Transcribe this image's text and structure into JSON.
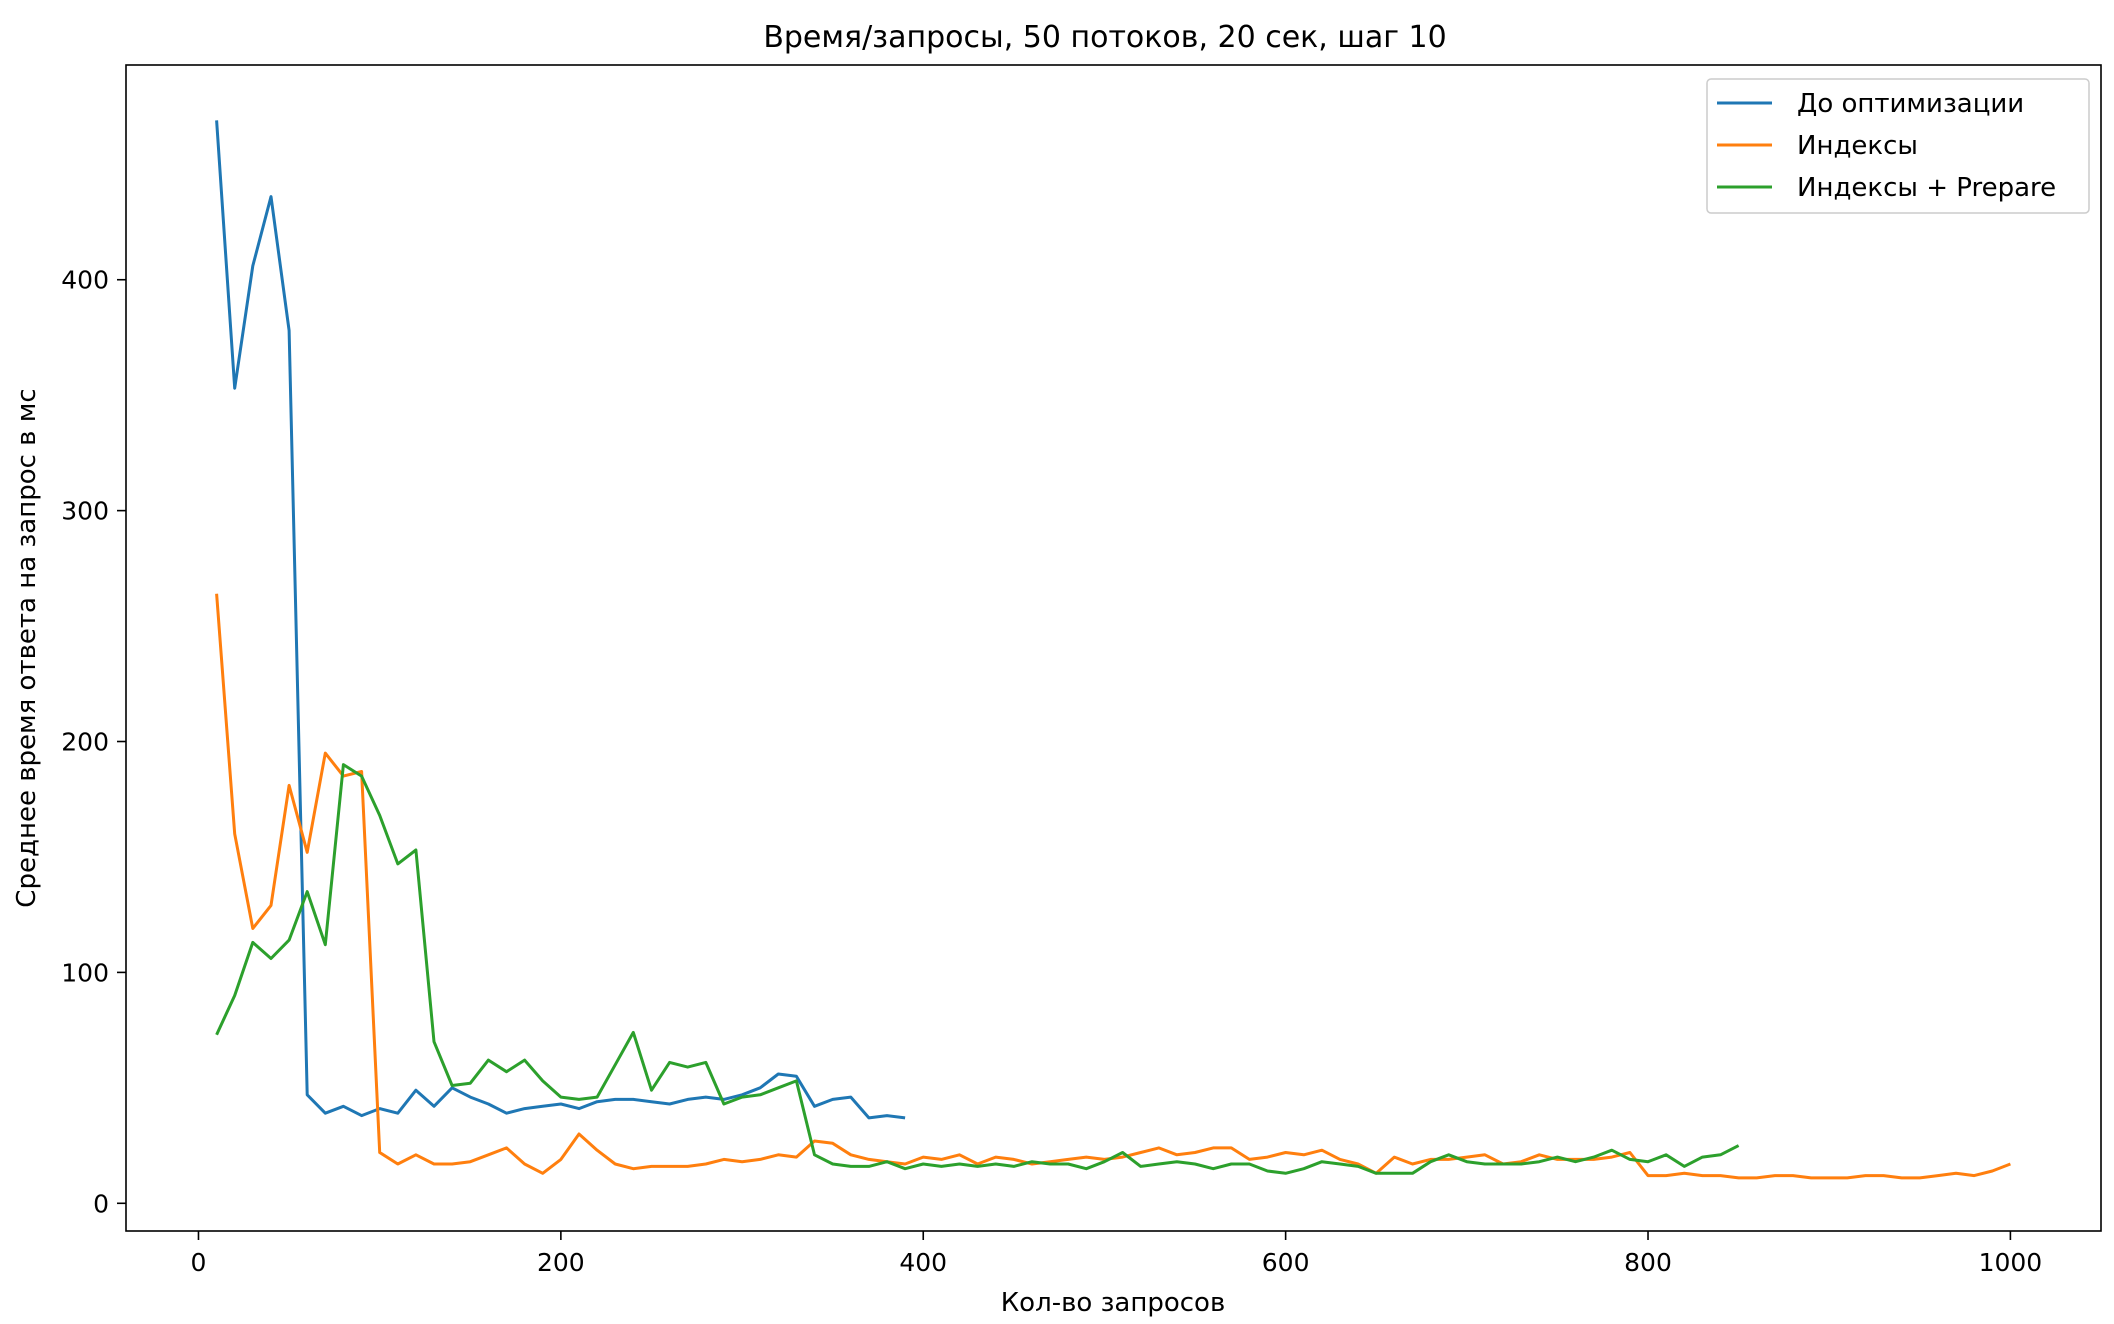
{
  "chart_data": {
    "type": "line",
    "title": "Время/запросы, 50 потоков, 20 сек, шаг 10",
    "xlabel": "Кол-во запросов",
    "ylabel": "Среднее время ответа на запрос в мс",
    "xlim": [
      -40,
      1050
    ],
    "ylim": [
      -12,
      493
    ],
    "xticks": [
      0,
      200,
      400,
      600,
      800,
      1000
    ],
    "yticks": [
      0,
      100,
      200,
      300,
      400
    ],
    "grid": false,
    "legend_position": "top-right",
    "series": [
      {
        "name": "До оптимизации",
        "color": "#1f77b4",
        "x": [
          10,
          20,
          30,
          40,
          50,
          60,
          70,
          80,
          90,
          100,
          110,
          120,
          130,
          140,
          150,
          160,
          170,
          180,
          190,
          200,
          210,
          220,
          230,
          240,
          250,
          260,
          270,
          280,
          290,
          300,
          310,
          320,
          330,
          340,
          350,
          360,
          370,
          380,
          390
        ],
        "values": [
          469,
          353,
          406,
          436,
          378,
          47,
          39,
          42,
          38,
          41,
          39,
          49,
          42,
          50,
          46,
          43,
          39,
          41,
          42,
          43,
          41,
          44,
          45,
          45,
          44,
          43,
          45,
          46,
          45,
          47,
          50,
          56,
          55,
          42,
          45,
          46,
          37,
          38,
          37
        ]
      },
      {
        "name": "Индексы",
        "color": "#ff7f0e",
        "x": [
          10,
          20,
          30,
          40,
          50,
          60,
          70,
          80,
          90,
          100,
          110,
          120,
          130,
          140,
          150,
          160,
          170,
          180,
          190,
          200,
          210,
          220,
          230,
          240,
          250,
          260,
          270,
          280,
          290,
          300,
          310,
          320,
          330,
          340,
          350,
          360,
          370,
          380,
          390,
          400,
          410,
          420,
          430,
          440,
          450,
          460,
          470,
          480,
          490,
          500,
          510,
          520,
          530,
          540,
          550,
          560,
          570,
          580,
          590,
          600,
          610,
          620,
          630,
          640,
          650,
          660,
          670,
          680,
          690,
          700,
          710,
          720,
          730,
          740,
          750,
          760,
          770,
          780,
          790,
          800,
          810,
          820,
          830,
          840,
          850,
          860,
          870,
          880,
          890,
          900,
          910,
          920,
          930,
          940,
          950,
          960,
          970,
          980,
          990,
          1000
        ],
        "values": [
          264,
          160,
          119,
          129,
          181,
          152,
          195,
          185,
          187,
          22,
          17,
          21,
          17,
          17,
          18,
          21,
          24,
          17,
          13,
          19,
          30,
          23,
          17,
          15,
          16,
          16,
          16,
          17,
          19,
          18,
          19,
          21,
          20,
          27,
          26,
          21,
          19,
          18,
          17,
          20,
          19,
          21,
          17,
          20,
          19,
          17,
          18,
          19,
          20,
          19,
          20,
          22,
          24,
          21,
          22,
          24,
          24,
          19,
          20,
          22,
          21,
          23,
          19,
          17,
          13,
          20,
          17,
          19,
          19,
          20,
          21,
          17,
          18,
          21,
          19,
          19,
          19,
          20,
          22,
          12,
          12,
          13,
          12,
          12,
          11,
          11,
          12,
          12,
          11,
          11,
          11,
          12,
          12,
          11,
          11,
          12,
          13,
          12,
          14,
          17
        ]
      },
      {
        "name": "Индексы + Prepare",
        "color": "#2ca02c",
        "x": [
          10,
          20,
          30,
          40,
          50,
          60,
          70,
          80,
          90,
          100,
          110,
          120,
          130,
          140,
          150,
          160,
          170,
          180,
          190,
          200,
          210,
          220,
          230,
          240,
          250,
          260,
          270,
          280,
          290,
          300,
          310,
          320,
          330,
          340,
          350,
          360,
          370,
          380,
          390,
          400,
          410,
          420,
          430,
          440,
          450,
          460,
          470,
          480,
          490,
          500,
          510,
          520,
          530,
          540,
          550,
          560,
          570,
          580,
          590,
          600,
          610,
          620,
          630,
          640,
          650,
          660,
          670,
          680,
          690,
          700,
          710,
          720,
          730,
          740,
          750,
          760,
          770,
          780,
          790,
          800,
          810,
          820,
          830,
          840,
          850
        ],
        "values": [
          73,
          90,
          113,
          106,
          114,
          135,
          112,
          190,
          185,
          168,
          147,
          153,
          70,
          51,
          52,
          62,
          57,
          62,
          53,
          46,
          45,
          46,
          60,
          74,
          49,
          61,
          59,
          61,
          43,
          46,
          47,
          50,
          53,
          21,
          17,
          16,
          16,
          18,
          15,
          17,
          16,
          17,
          16,
          17,
          16,
          18,
          17,
          17,
          15,
          18,
          22,
          16,
          17,
          18,
          17,
          15,
          17,
          17,
          14,
          13,
          15,
          18,
          17,
          16,
          13,
          13,
          13,
          18,
          21,
          18,
          17,
          17,
          17,
          18,
          20,
          18,
          20,
          23,
          19,
          18,
          21,
          16,
          20,
          21,
          25
        ]
      }
    ]
  }
}
